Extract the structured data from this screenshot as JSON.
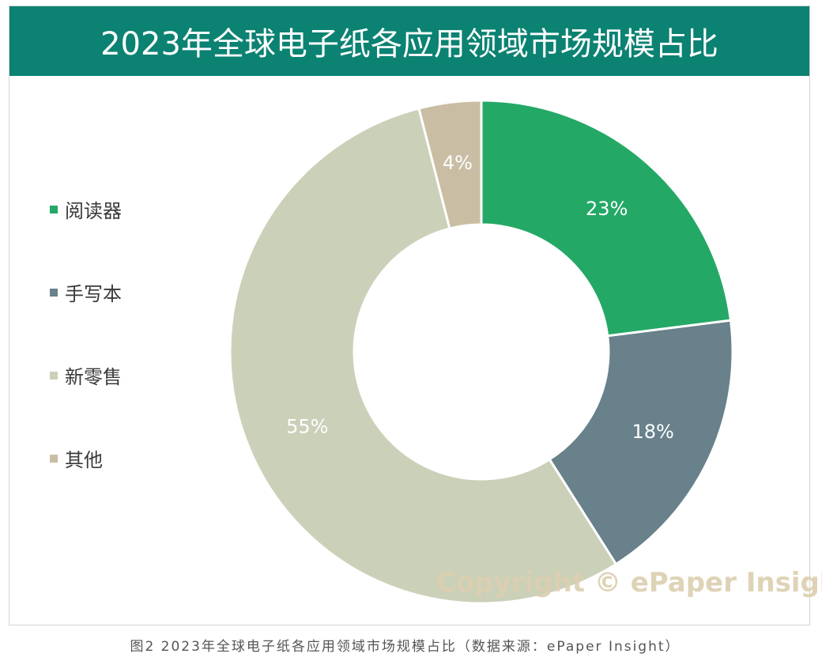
{
  "header": {
    "title": "2023年全球电子纸各应用领域市场规模占比"
  },
  "chart_data": {
    "type": "pie",
    "title": "2023年全球电子纸各应用领域市场规模占比",
    "categories": [
      "阅读器",
      "手写本",
      "新零售",
      "其他"
    ],
    "values": [
      23,
      18,
      55,
      4
    ],
    "labels": [
      "23%",
      "18%",
      "55%",
      "4%"
    ],
    "colors": [
      "#24a866",
      "#68818b",
      "#cbd0b8",
      "#c9bea3"
    ],
    "legend_position": "left",
    "style": "donut"
  },
  "watermark": "Copyright © ePaper Insight",
  "caption": "图2 2023年全球电子纸各应用领域市场规模占比（数据来源：ePaper Insight）"
}
